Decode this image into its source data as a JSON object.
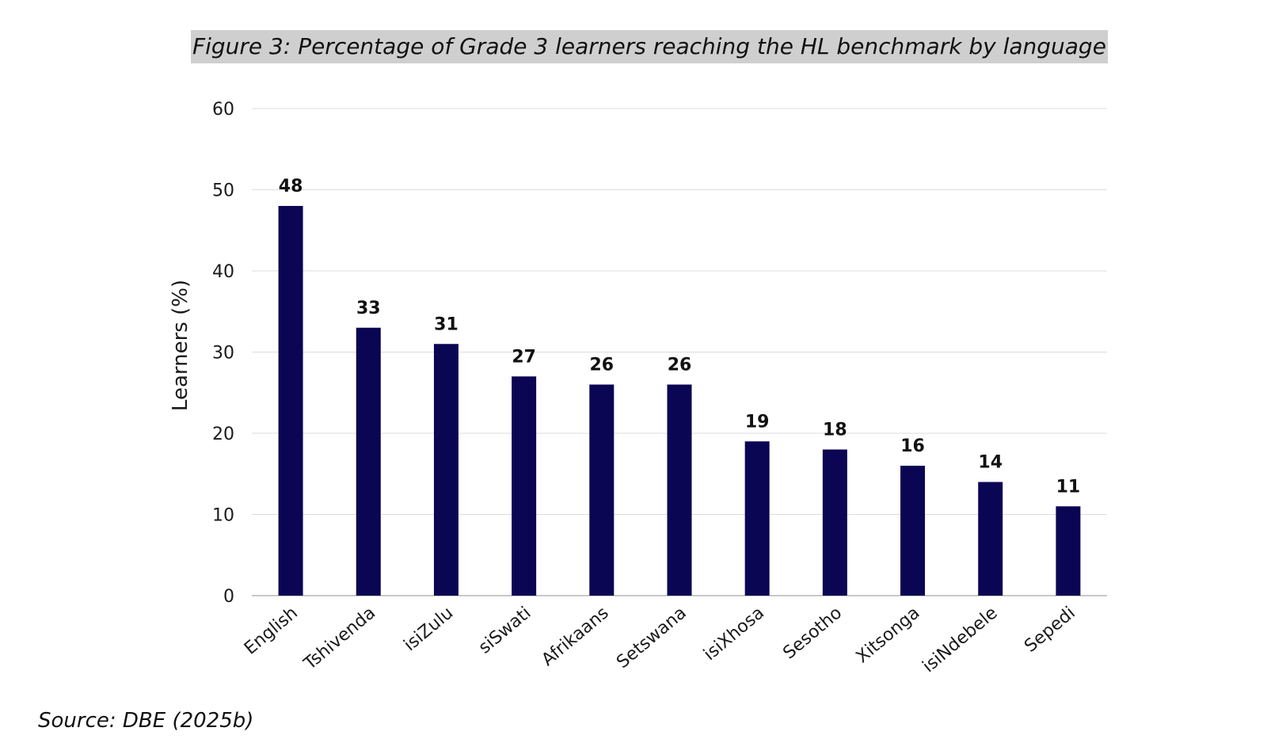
{
  "figure": {
    "title": "Figure 3: Percentage of Grade 3 learners reaching the HL benchmark by language",
    "source": "Source: DBE (2025b)"
  },
  "colors": {
    "bar": "#0b0653",
    "grid": "#dcdcdc",
    "axis": "#c8c8c8",
    "title_highlight": "#cfcfcf"
  },
  "chart_data": {
    "type": "bar",
    "title": "Figure 3: Percentage of Grade 3 learners reaching the HL benchmark by language",
    "xlabel": "",
    "ylabel": "Learners (%)",
    "ylim": [
      0,
      60
    ],
    "yticks": [
      0,
      10,
      20,
      30,
      40,
      50,
      60
    ],
    "grid": true,
    "legend": "none",
    "categories": [
      "English",
      "Tshivenda",
      "isiZulu",
      "siSwati",
      "Afrikaans",
      "Setswana",
      "isiXhosa",
      "Sesotho",
      "Xitsonga",
      "isiNdebele",
      "Sepedi"
    ],
    "values": [
      48,
      33,
      31,
      27,
      26,
      26,
      19,
      18,
      16,
      14,
      11
    ]
  }
}
